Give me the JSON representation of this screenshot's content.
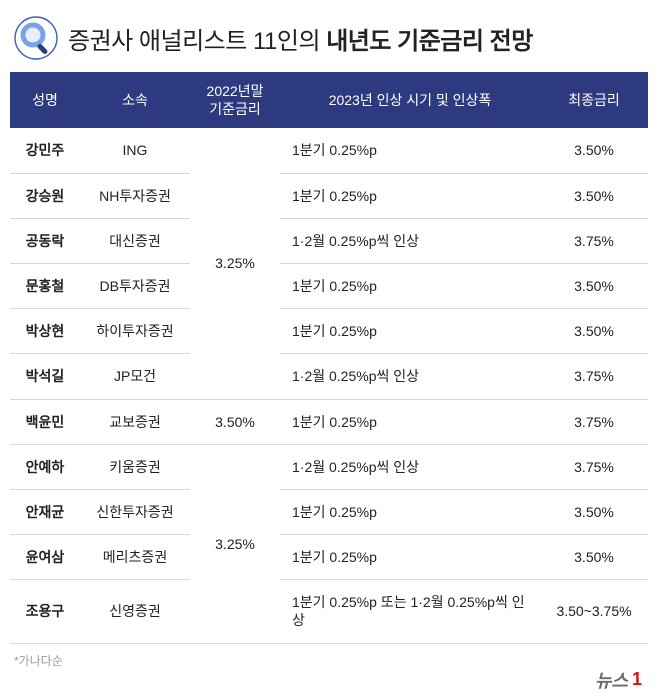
{
  "title": {
    "prefix": "증권사 애널리스트 11인의 ",
    "bold": "내년도 기준금리 전망"
  },
  "columns": {
    "name": "성명",
    "firm": "소속",
    "base2022_line1": "2022년말",
    "base2022_line2": "기준금리",
    "forecast2023": "2023년 인상 시기 및 인상폭",
    "final": "최종금리",
    "widths": {
      "name": 70,
      "firm": 110,
      "base2022": 90,
      "forecast": 260,
      "final": 108
    }
  },
  "groups": [
    {
      "base_rate": "3.25%",
      "rows": [
        {
          "name": "강민주",
          "firm": "ING",
          "forecast": "1분기 0.25%p",
          "final": "3.50%"
        },
        {
          "name": "강승원",
          "firm": "NH투자증권",
          "forecast": "1분기 0.25%p",
          "final": "3.50%"
        },
        {
          "name": "공동락",
          "firm": "대신증권",
          "forecast": "1·2월 0.25%p씩 인상",
          "final": "3.75%"
        },
        {
          "name": "문홍철",
          "firm": "DB투자증권",
          "forecast": "1분기 0.25%p",
          "final": "3.50%"
        },
        {
          "name": "박상현",
          "firm": "하이투자증권",
          "forecast": "1분기 0.25%p",
          "final": "3.50%"
        },
        {
          "name": "박석길",
          "firm": "JP모건",
          "forecast": "1·2월 0.25%p씩 인상",
          "final": "3.75%"
        }
      ]
    },
    {
      "base_rate": "3.50%",
      "rows": [
        {
          "name": "백윤민",
          "firm": "교보증권",
          "forecast": "1분기 0.25%p",
          "final": "3.75%"
        }
      ]
    },
    {
      "base_rate": "3.25%",
      "rows": [
        {
          "name": "안예하",
          "firm": "키움증권",
          "forecast": "1·2월 0.25%p씩 인상",
          "final": "3.75%"
        },
        {
          "name": "안재균",
          "firm": "신한투자증권",
          "forecast": "1분기 0.25%p",
          "final": "3.50%"
        },
        {
          "name": "윤여삼",
          "firm": "메리츠증권",
          "forecast": "1분기 0.25%p",
          "final": "3.50%"
        },
        {
          "name": "조용구",
          "firm": "신영증권",
          "forecast": "1분기 0.25%p 또는 1·2월 0.25%p씩 인상",
          "final": "3.50~3.75%"
        }
      ]
    }
  ],
  "footnote": "*가나다순",
  "logo": {
    "text": "뉴스",
    "suffix": "1"
  },
  "colors": {
    "header_bg": "#2d3a80",
    "header_fg": "#ffffff",
    "row_border": "#d9d9d9",
    "text": "#222222",
    "footnote": "#9a9a9a",
    "icon_ring": "#3a5fb5",
    "icon_lens": "#7aa2e8"
  }
}
